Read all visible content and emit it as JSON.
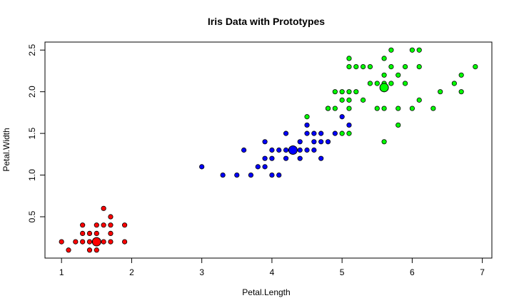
{
  "chart_data": {
    "type": "scatter",
    "title": "Iris Data with Prototypes",
    "xlabel": "Petal.Length",
    "ylabel": "Petal.Width",
    "xlim": [
      1,
      6.9
    ],
    "ylim": [
      0.1,
      2.5
    ],
    "xticks": [
      1,
      2,
      3,
      4,
      5,
      6,
      7
    ],
    "yticks": [
      0.5,
      1.0,
      1.5,
      2.0,
      2.5
    ],
    "ytick_labels": [
      "0.5",
      "1.0",
      "1.5",
      "2.0",
      "2.5"
    ],
    "grid": false,
    "series": [
      {
        "color": "#ff0000",
        "points": [
          [
            1.0,
            0.2
          ],
          [
            1.1,
            0.1
          ],
          [
            1.2,
            0.2
          ],
          [
            1.3,
            0.4
          ],
          [
            1.3,
            0.3
          ],
          [
            1.3,
            0.2
          ],
          [
            1.4,
            0.3
          ],
          [
            1.4,
            0.2
          ],
          [
            1.4,
            0.1
          ],
          [
            1.5,
            0.4
          ],
          [
            1.5,
            0.3
          ],
          [
            1.5,
            0.2
          ],
          [
            1.5,
            0.1
          ],
          [
            1.6,
            0.6
          ],
          [
            1.6,
            0.4
          ],
          [
            1.6,
            0.2
          ],
          [
            1.7,
            0.4
          ],
          [
            1.7,
            0.3
          ],
          [
            1.7,
            0.2
          ],
          [
            1.7,
            0.5
          ],
          [
            1.9,
            0.4
          ],
          [
            1.9,
            0.2
          ]
        ],
        "prototype": [
          1.5,
          0.2
        ]
      },
      {
        "color": "#0000ff",
        "points": [
          [
            3.0,
            1.1
          ],
          [
            3.3,
            1.0
          ],
          [
            3.5,
            1.0
          ],
          [
            3.6,
            1.3
          ],
          [
            3.7,
            1.0
          ],
          [
            3.8,
            1.1
          ],
          [
            3.9,
            1.1
          ],
          [
            3.9,
            1.2
          ],
          [
            3.9,
            1.4
          ],
          [
            4.0,
            1.0
          ],
          [
            4.0,
            1.2
          ],
          [
            4.0,
            1.3
          ],
          [
            4.1,
            1.0
          ],
          [
            4.1,
            1.3
          ],
          [
            4.2,
            1.2
          ],
          [
            4.2,
            1.3
          ],
          [
            4.2,
            1.5
          ],
          [
            4.3,
            1.3
          ],
          [
            4.4,
            1.2
          ],
          [
            4.4,
            1.3
          ],
          [
            4.4,
            1.4
          ],
          [
            4.5,
            1.3
          ],
          [
            4.5,
            1.5
          ],
          [
            4.5,
            1.6
          ],
          [
            4.6,
            1.3
          ],
          [
            4.6,
            1.4
          ],
          [
            4.6,
            1.5
          ],
          [
            4.7,
            1.2
          ],
          [
            4.7,
            1.4
          ],
          [
            4.7,
            1.5
          ],
          [
            4.8,
            1.4
          ],
          [
            4.8,
            1.8
          ],
          [
            4.9,
            1.5
          ],
          [
            5.0,
            1.7
          ],
          [
            5.1,
            1.6
          ]
        ],
        "prototype": [
          4.3,
          1.3
        ]
      },
      {
        "color": "#00ff00",
        "points": [
          [
            4.5,
            1.7
          ],
          [
            4.8,
            1.8
          ],
          [
            4.9,
            1.8
          ],
          [
            4.9,
            2.0
          ],
          [
            5.0,
            1.5
          ],
          [
            5.0,
            1.9
          ],
          [
            5.0,
            2.0
          ],
          [
            5.1,
            1.5
          ],
          [
            5.1,
            1.8
          ],
          [
            5.1,
            1.9
          ],
          [
            5.1,
            2.0
          ],
          [
            5.1,
            2.3
          ],
          [
            5.1,
            2.4
          ],
          [
            5.2,
            2.0
          ],
          [
            5.2,
            2.3
          ],
          [
            5.3,
            1.9
          ],
          [
            5.3,
            2.3
          ],
          [
            5.4,
            2.1
          ],
          [
            5.4,
            2.3
          ],
          [
            5.5,
            1.8
          ],
          [
            5.5,
            2.1
          ],
          [
            5.6,
            1.4
          ],
          [
            5.6,
            1.8
          ],
          [
            5.6,
            2.1
          ],
          [
            5.6,
            2.2
          ],
          [
            5.6,
            2.4
          ],
          [
            5.7,
            2.1
          ],
          [
            5.7,
            2.3
          ],
          [
            5.7,
            2.5
          ],
          [
            5.8,
            1.6
          ],
          [
            5.8,
            1.8
          ],
          [
            5.8,
            2.2
          ],
          [
            5.9,
            2.1
          ],
          [
            5.9,
            2.3
          ],
          [
            6.0,
            1.8
          ],
          [
            6.0,
            2.5
          ],
          [
            6.1,
            1.9
          ],
          [
            6.1,
            2.3
          ],
          [
            6.1,
            2.5
          ],
          [
            6.3,
            1.8
          ],
          [
            6.4,
            2.0
          ],
          [
            6.6,
            2.1
          ],
          [
            6.7,
            2.0
          ],
          [
            6.7,
            2.2
          ],
          [
            6.9,
            2.3
          ]
        ],
        "prototype": [
          5.6,
          2.05
        ]
      }
    ]
  }
}
